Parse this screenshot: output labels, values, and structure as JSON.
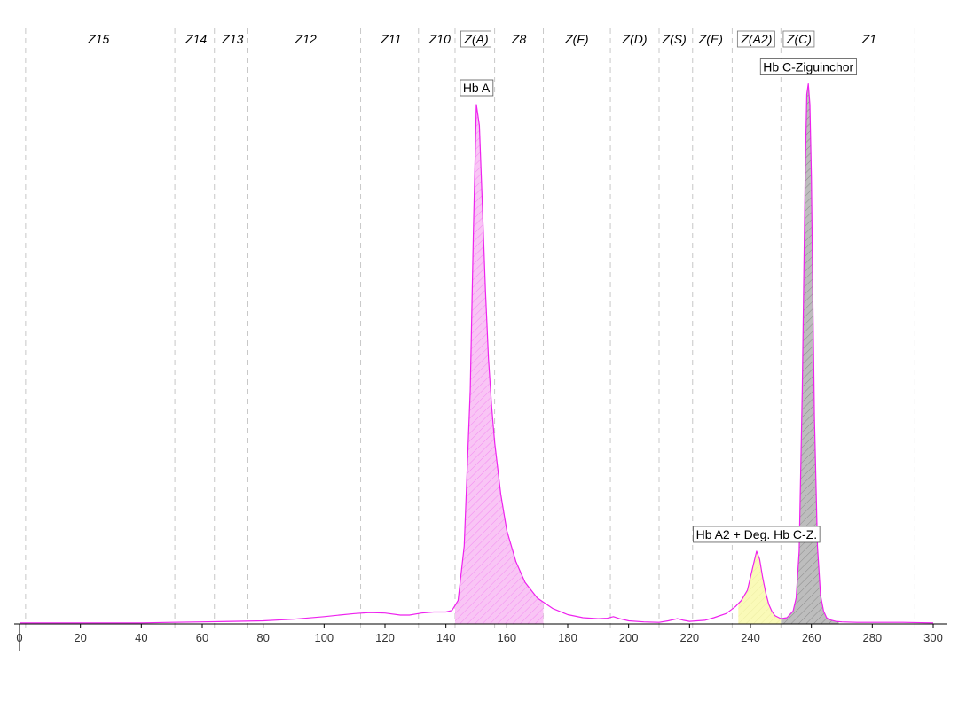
{
  "chart_data": {
    "type": "area",
    "title": "",
    "xlabel": "",
    "ylabel": "",
    "xlim": [
      0,
      300
    ],
    "ylim": [
      0,
      100
    ],
    "grid": false,
    "x_ticks": [
      0,
      20,
      40,
      60,
      80,
      100,
      120,
      140,
      160,
      180,
      200,
      220,
      240,
      260,
      280,
      300
    ],
    "zone_boundaries": [
      2,
      51,
      64,
      75,
      112,
      131,
      143,
      156,
      172,
      194,
      210,
      221,
      234,
      250,
      294
    ],
    "zones": [
      {
        "label": "Z15",
        "x": 26,
        "boxed": false
      },
      {
        "label": "Z14",
        "x": 58,
        "boxed": false
      },
      {
        "label": "Z13",
        "x": 70,
        "boxed": false
      },
      {
        "label": "Z12",
        "x": 94,
        "boxed": false
      },
      {
        "label": "Z11",
        "x": 122,
        "boxed": false
      },
      {
        "label": "Z10",
        "x": 138,
        "boxed": false
      },
      {
        "label": "Z(A)",
        "x": 150,
        "boxed": true
      },
      {
        "label": "Z8",
        "x": 164,
        "boxed": false
      },
      {
        "label": "Z(F)",
        "x": 183,
        "boxed": false
      },
      {
        "label": "Z(D)",
        "x": 202,
        "boxed": false
      },
      {
        "label": "Z(S)",
        "x": 215,
        "boxed": false
      },
      {
        "label": "Z(E)",
        "x": 227,
        "boxed": false
      },
      {
        "label": "Z(A2)",
        "x": 242,
        "boxed": true
      },
      {
        "label": "Z(C)",
        "x": 256,
        "boxed": true
      },
      {
        "label": "Z1",
        "x": 279,
        "boxed": false
      }
    ],
    "series": [
      {
        "color": "#ee22ee",
        "x": [
          0,
          20,
          40,
          50,
          60,
          70,
          80,
          90,
          100,
          105,
          110,
          115,
          120,
          125,
          128,
          132,
          136,
          140,
          142,
          144,
          146,
          148,
          149,
          150,
          151,
          152,
          153,
          154,
          155,
          156,
          158,
          160,
          163,
          166,
          170,
          175,
          180,
          185,
          190,
          193,
          195,
          197,
          200,
          205,
          210,
          213,
          216,
          218,
          220,
          225,
          228,
          232,
          235,
          237,
          239,
          240,
          241,
          242,
          243,
          244,
          245,
          246,
          247,
          248,
          250,
          252,
          254,
          255,
          256,
          257,
          258,
          258.5,
          259,
          259.5,
          260,
          260.5,
          261,
          262,
          263,
          264,
          265,
          266,
          268,
          270,
          275,
          280,
          290,
          300
        ],
        "y": [
          0.2,
          0.2,
          0.2,
          0.3,
          0.4,
          0.5,
          0.6,
          0.9,
          1.4,
          1.7,
          2.0,
          2.2,
          2.1,
          1.7,
          1.7,
          2.1,
          2.3,
          2.3,
          2.6,
          4.5,
          15,
          45,
          75,
          100,
          96,
          80,
          64,
          51,
          42,
          35,
          25,
          18,
          12,
          8,
          5,
          3,
          1.8,
          1.2,
          1.0,
          1.1,
          1.4,
          1.0,
          0.6,
          0.4,
          0.3,
          0.6,
          1.0,
          0.7,
          0.5,
          0.7,
          1.2,
          2.0,
          3.3,
          4.5,
          6.5,
          9.0,
          11.5,
          14.0,
          12.5,
          9.0,
          6.0,
          3.8,
          2.5,
          1.6,
          1.0,
          1.2,
          2.5,
          5.0,
          14,
          45,
          88,
          102,
          104,
          100,
          86,
          62,
          40,
          15,
          5.5,
          2.5,
          1.2,
          0.8,
          0.5,
          0.4,
          0.3,
          0.3,
          0.3,
          0.2
        ]
      }
    ],
    "peaks": [
      {
        "label": "Hb A",
        "x": 150,
        "x_start": 143,
        "x_end": 172,
        "fill": "#f9c5f5",
        "hatch": "#ee22ee"
      },
      {
        "label": "Hb A2 + Deg. Hb C-Z.",
        "x": 242,
        "x_start": 236,
        "x_end": 250,
        "fill": "#fafab8",
        "hatch": "#dddd88"
      },
      {
        "label": "Hb C-Ziguinchor",
        "x": 259,
        "x_start": 250,
        "x_end": 269,
        "fill": "#bdbdbd",
        "hatch": "#777777"
      }
    ]
  }
}
